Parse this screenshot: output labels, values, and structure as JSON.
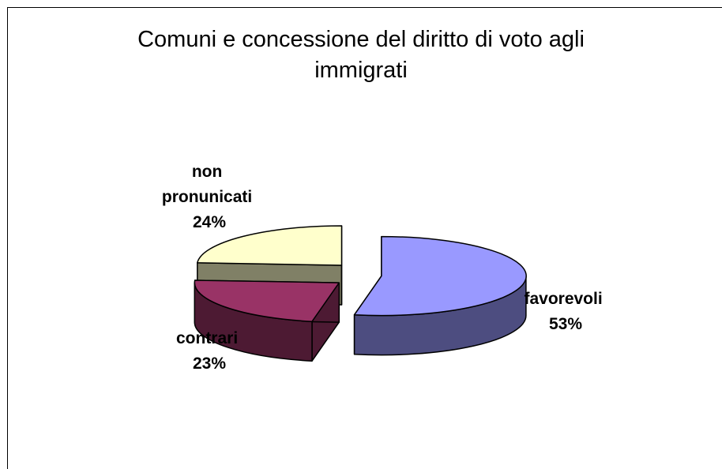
{
  "chart_data": {
    "type": "pie",
    "style": "exploded-3d",
    "title": "Comuni e concessione del diritto di voto agli immigrati",
    "title_lines": [
      "Comuni e concessione del diritto di voto agli",
      "immigrati"
    ],
    "slices": [
      {
        "label_lines": [
          "favorevoli"
        ],
        "value": 53,
        "value_label": "53%",
        "color": "#9999ff",
        "side_color": "#4d4d80"
      },
      {
        "label_lines": [
          "contrari"
        ],
        "value": 23,
        "value_label": "23%",
        "color": "#993366",
        "side_color": "#4d1a33"
      },
      {
        "label_lines": [
          "non",
          "pronunicati"
        ],
        "value": 24,
        "value_label": "24%",
        "color": "#ffffcc",
        "side_color": "#808066"
      }
    ],
    "legend": "none"
  }
}
